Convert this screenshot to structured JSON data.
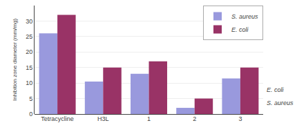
{
  "chart_data": {
    "type": "bar",
    "categories": [
      "Tetracycline",
      "H3L",
      "1",
      "2",
      "3"
    ],
    "series": [
      {
        "name": "S. aureus",
        "color": "#9999dd",
        "values": [
          26,
          10.5,
          13,
          2,
          11.5
        ]
      },
      {
        "name": "E. coli",
        "color": "#993366",
        "values": [
          32,
          15,
          17,
          5,
          15
        ]
      }
    ],
    "ylabel": "Inhibition zone diameter (mm/mg)",
    "ylim": [
      0,
      35
    ],
    "yticks": [
      0,
      5,
      10,
      15,
      20,
      25,
      30
    ],
    "grid": true,
    "legend": "upper right",
    "annotations": [
      "E. coli",
      "S. aureus"
    ]
  }
}
